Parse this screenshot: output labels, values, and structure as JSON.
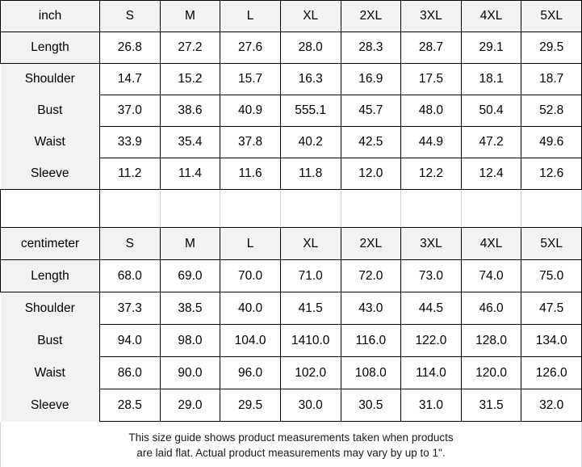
{
  "chart_data": [
    {
      "type": "table",
      "unit": "inch",
      "sizes": [
        "S",
        "M",
        "L",
        "XL",
        "2XL",
        "3XL",
        "4XL",
        "5XL"
      ],
      "rows": [
        {
          "label": "Length",
          "values": [
            "26.8",
            "27.2",
            "27.6",
            "28.0",
            "28.3",
            "28.7",
            "29.1",
            "29.5"
          ]
        },
        {
          "label": "Shoulder",
          "values": [
            "14.7",
            "15.2",
            "15.7",
            "16.3",
            "16.9",
            "17.5",
            "18.1",
            "18.7"
          ]
        },
        {
          "label": "Bust",
          "values": [
            "37.0",
            "38.6",
            "40.9",
            "555.1",
            "45.7",
            "48.0",
            "50.4",
            "52.8"
          ]
        },
        {
          "label": "Waist",
          "values": [
            "33.9",
            "35.4",
            "37.8",
            "40.2",
            "42.5",
            "44.9",
            "47.2",
            "49.6"
          ]
        },
        {
          "label": "Sleeve",
          "values": [
            "11.2",
            "11.4",
            "11.6",
            "11.8",
            "12.0",
            "12.2",
            "12.4",
            "12.6"
          ]
        }
      ]
    },
    {
      "type": "table",
      "unit": "centimeter",
      "sizes": [
        "S",
        "M",
        "L",
        "XL",
        "2XL",
        "3XL",
        "4XL",
        "5XL"
      ],
      "rows": [
        {
          "label": "Length",
          "values": [
            "68.0",
            "69.0",
            "70.0",
            "71.0",
            "72.0",
            "73.0",
            "74.0",
            "75.0"
          ]
        },
        {
          "label": "Shoulder",
          "values": [
            "37.3",
            "38.5",
            "40.0",
            "41.5",
            "43.0",
            "44.5",
            "46.0",
            "47.5"
          ]
        },
        {
          "label": "Bust",
          "values": [
            "94.0",
            "98.0",
            "104.0",
            "1410.0",
            "116.0",
            "122.0",
            "128.0",
            "134.0"
          ]
        },
        {
          "label": "Waist",
          "values": [
            "86.0",
            "90.0",
            "96.0",
            "102.0",
            "108.0",
            "114.0",
            "120.0",
            "126.0"
          ]
        },
        {
          "label": "Sleeve",
          "values": [
            "28.5",
            "29.0",
            "29.5",
            "30.0",
            "30.5",
            "31.0",
            "31.5",
            "32.0"
          ]
        }
      ]
    }
  ],
  "footer": {
    "line1": "This size guide shows product measurements taken when products",
    "line2": "are laid flat. Actual product measurements may vary by up to 1\"."
  },
  "colors": {
    "header_fill": "#f2f2f2",
    "table_border": "#000000",
    "spacer_gridline": "#c8d2dc",
    "text": "#000000"
  }
}
